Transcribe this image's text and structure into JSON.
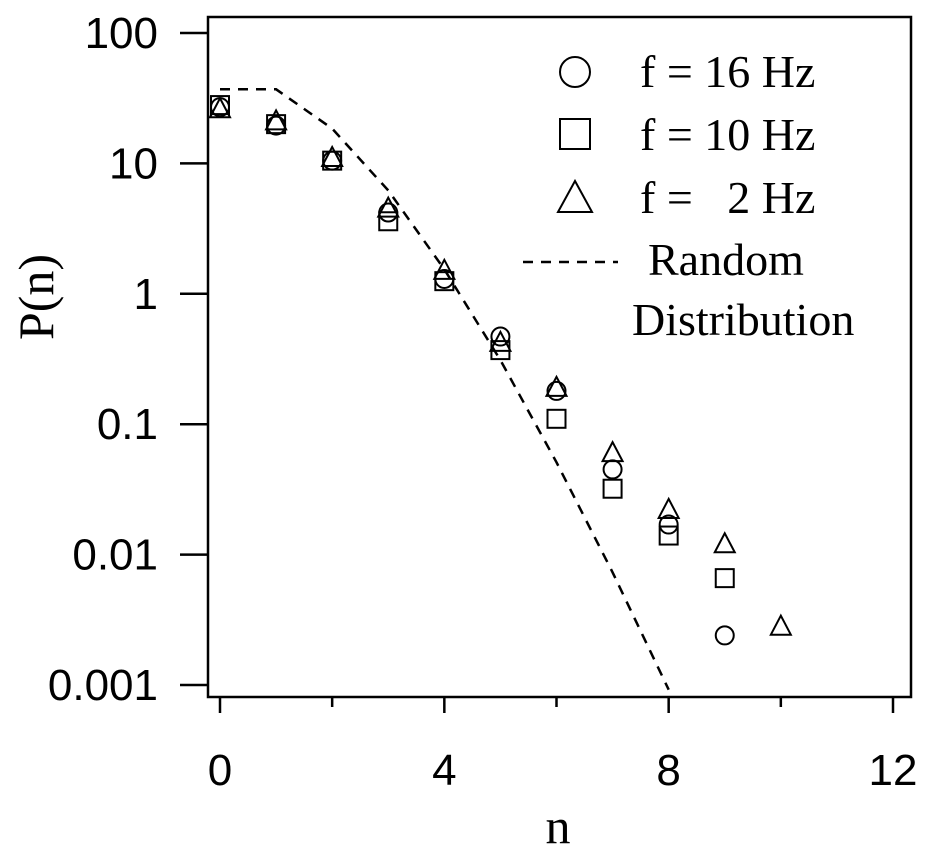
{
  "chart_data": {
    "type": "scatter",
    "xlabel": "n",
    "ylabel": "P(n)",
    "xlim": [
      -0.2,
      12.1
    ],
    "ylim": [
      0.001,
      150
    ],
    "yscale": "log",
    "grid": false,
    "x_ticks": [
      {
        "value": 0,
        "label": "0"
      },
      {
        "value": 4,
        "label": "4"
      },
      {
        "value": 8,
        "label": "8"
      },
      {
        "value": 12,
        "label": "12"
      }
    ],
    "x_minor_ticks": [
      2,
      6,
      10
    ],
    "y_ticks": [
      {
        "value": 100,
        "label": "100"
      },
      {
        "value": 10,
        "label": "10"
      },
      {
        "value": 1,
        "label": "1"
      },
      {
        "value": 0.1,
        "label": "0.1"
      },
      {
        "value": 0.01,
        "label": "0.01"
      },
      {
        "value": 0.001,
        "label": "0.001"
      }
    ],
    "legend_position": "top-right",
    "series": [
      {
        "name": "f = 16 Hz",
        "marker": "circle",
        "x": [
          0,
          1,
          2,
          3,
          4,
          5,
          6,
          7,
          8,
          9
        ],
        "y": [
          27,
          19.5,
          10.5,
          4.2,
          1.3,
          0.47,
          0.18,
          0.045,
          0.017,
          0.0024
        ]
      },
      {
        "name": "f = 10 Hz",
        "marker": "square",
        "x": [
          0,
          1,
          2,
          3,
          4,
          5,
          6,
          7,
          8,
          9
        ],
        "y": [
          28,
          20,
          10.5,
          3.6,
          1.25,
          0.37,
          0.11,
          0.032,
          0.014,
          0.0066
        ]
      },
      {
        "name": "f =   2 Hz",
        "marker": "triangle",
        "x": [
          0,
          1,
          2,
          3,
          4,
          5,
          6,
          7,
          8,
          9,
          10
        ],
        "y": [
          26,
          21,
          11,
          4.5,
          1.5,
          0.42,
          0.19,
          0.06,
          0.022,
          0.012,
          0.0028
        ]
      },
      {
        "name": "Random Distribution",
        "name_lines": [
          "Random",
          "Distribution"
        ],
        "marker": "dashed-line",
        "x": [
          0,
          1,
          2,
          3,
          4,
          5,
          6,
          7,
          8
        ],
        "y": [
          37,
          37,
          18.5,
          6.2,
          1.54,
          0.31,
          0.051,
          0.0073,
          0.00092
        ]
      }
    ]
  }
}
